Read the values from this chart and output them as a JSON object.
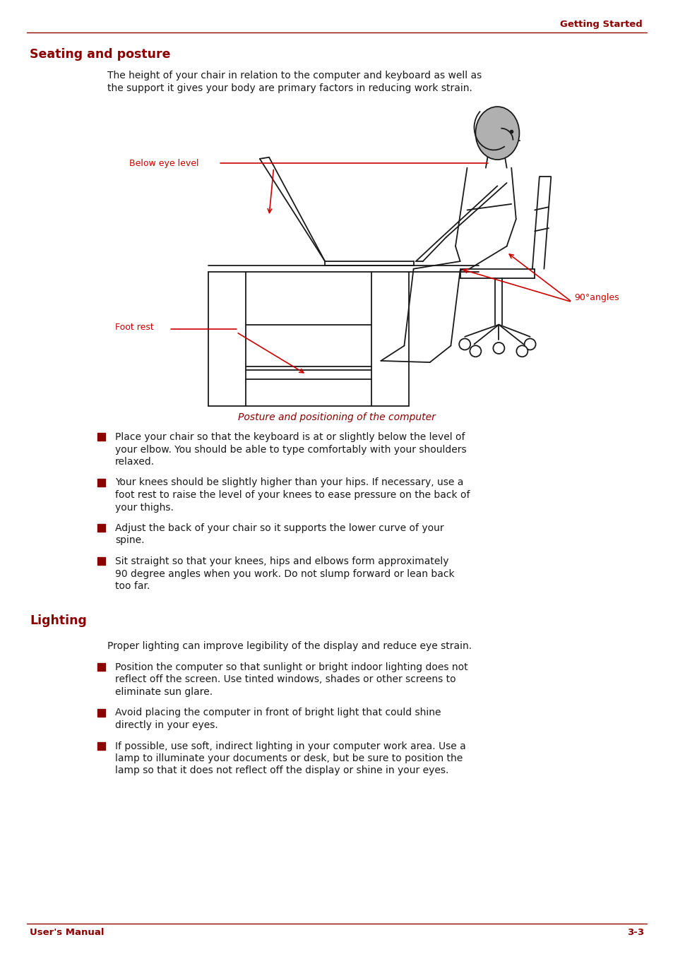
{
  "page_header_text": "Getting Started",
  "red_color": "#8B0000",
  "ann_color": "#CC0000",
  "black_color": "#1a1a1a",
  "bg_color": "#ffffff",
  "section1_title": "Seating and posture",
  "section1_intro_line1": "The height of your chair in relation to the computer and keyboard as well as",
  "section1_intro_line2": "the support it gives your body are primary factors in reducing work strain.",
  "caption_text": "Posture and positioning of the computer",
  "label_below_eye": "Below eye level",
  "label_90": "90°angles",
  "label_foot": "Foot rest",
  "bullets1": [
    "Place your chair so that the keyboard is at or slightly below the level of\nyour elbow. You should be able to type comfortably with your shoulders\nrelaxed.",
    "Your knees should be slightly higher than your hips. If necessary, use a\nfoot rest to raise the level of your knees to ease pressure on the back of\nyour thighs.",
    "Adjust the back of your chair so it supports the lower curve of your\nspine.",
    "Sit straight so that your knees, hips and elbows form approximately\n90 degree angles when you work. Do not slump forward or lean back\ntoo far."
  ],
  "section2_title": "Lighting",
  "section2_intro": "Proper lighting can improve legibility of the display and reduce eye strain.",
  "bullets2": [
    "Position the computer so that sunlight or bright indoor lighting does not\nreflect off the screen. Use tinted windows, shades or other screens to\neliminate sun glare.",
    "Avoid placing the computer in front of bright light that could shine\ndirectly in your eyes.",
    "If possible, use soft, indirect lighting in your computer work area. Use a\nlamp to illuminate your documents or desk, but be sure to position the\nlamp so that it does not reflect off the display or shine in your eyes."
  ],
  "footer_left": "User's Manual",
  "footer_right": "3-3"
}
